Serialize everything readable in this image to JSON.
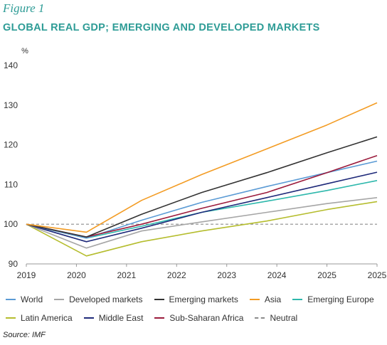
{
  "figure_label": "Figure 1",
  "source": "Source: IMF",
  "chart_data": {
    "type": "line",
    "title": "GLOBAL REAL GDP; EMERGING AND DEVELOPED MARKETS",
    "ylabel": "%",
    "xlabel": "",
    "ylim": [
      90,
      140
    ],
    "yticks": [
      90,
      100,
      110,
      120,
      130,
      140
    ],
    "x_tick_labels": [
      "2019",
      "2020",
      "2021",
      "2022",
      "2023",
      "2024",
      "2025",
      "2025"
    ],
    "grid": false,
    "legend_position": "bottom",
    "series": [
      {
        "name": "World",
        "color": "#5b9bd5",
        "x": [
          2019,
          2020.2,
          2021.3,
          2022.5,
          2023.8,
          2025,
          2026
        ],
        "y": [
          100,
          96.5,
          101,
          105.5,
          109.5,
          113,
          115.9
        ]
      },
      {
        "name": "Developed markets",
        "color": "#a6a6a6",
        "x": [
          2019,
          2020.2,
          2021.3,
          2022.5,
          2023.8,
          2025,
          2026
        ],
        "y": [
          100,
          94,
          98.3,
          100.6,
          103,
          105.2,
          106.7
        ]
      },
      {
        "name": "Emerging markets",
        "color": "#333333",
        "x": [
          2019,
          2020.2,
          2021.3,
          2022.5,
          2023.8,
          2025,
          2026
        ],
        "y": [
          100,
          96.8,
          102.5,
          108,
          113,
          118,
          122
        ]
      },
      {
        "name": "Asia",
        "color": "#f39c24",
        "x": [
          2019,
          2020.2,
          2021.3,
          2022.5,
          2023.8,
          2025,
          2026
        ],
        "y": [
          100,
          98,
          106,
          112.5,
          119,
          125,
          130.6
        ]
      },
      {
        "name": "Emerging Europe",
        "color": "#2eb8ac",
        "x": [
          2019,
          2020.2,
          2021.3,
          2022.5,
          2023.8,
          2025,
          2026
        ],
        "y": [
          100,
          96.5,
          99.5,
          103,
          105.8,
          108.5,
          111
        ]
      },
      {
        "name": "Latin America",
        "color": "#b5bd2e",
        "x": [
          2019,
          2020.2,
          2021.3,
          2022.5,
          2023.8,
          2025,
          2026
        ],
        "y": [
          100,
          92,
          95.6,
          98.3,
          100.8,
          103.7,
          105.7
        ]
      },
      {
        "name": "Middle East",
        "color": "#1f2a7a",
        "x": [
          2019,
          2020.2,
          2021.3,
          2022.5,
          2023.8,
          2025,
          2026
        ],
        "y": [
          100,
          95.6,
          99,
          103,
          106.7,
          110.2,
          113.1
        ]
      },
      {
        "name": "Sub-Saharan Africa",
        "color": "#9b1b3c",
        "x": [
          2019,
          2020.2,
          2021.3,
          2022.5,
          2023.8,
          2025,
          2026
        ],
        "y": [
          100,
          96.8,
          100,
          104,
          108,
          113,
          117.3
        ]
      },
      {
        "name": "Neutral",
        "color": "#8c8c8c",
        "dashed": true,
        "x": [
          2019,
          2026
        ],
        "y": [
          100,
          100
        ]
      }
    ]
  }
}
